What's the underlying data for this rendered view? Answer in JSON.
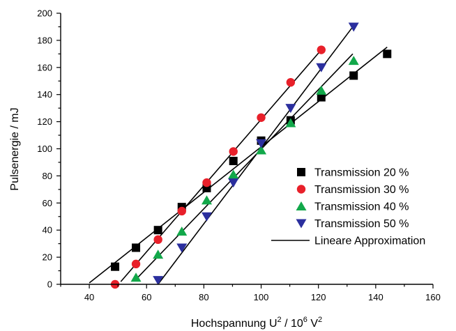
{
  "chart_data": {
    "type": "scatter",
    "title": "",
    "xlabel": {
      "main": "Hochspannung U",
      "sup1": "2",
      "mid": " / 10",
      "sup2": "6",
      "unit": " V",
      "sup3": "2"
    },
    "ylabel": "Pulsenergie / mJ",
    "xlim": [
      30,
      160
    ],
    "ylim": [
      0,
      200
    ],
    "xticks": [
      40,
      60,
      80,
      100,
      120,
      140,
      160
    ],
    "yticks": [
      0,
      20,
      40,
      60,
      80,
      100,
      120,
      140,
      160,
      180,
      200
    ],
    "legend_position": "center-right",
    "series": [
      {
        "name": "Transmission 20 %",
        "marker": "square",
        "color": "#000000",
        "points": [
          [
            49,
            13
          ],
          [
            56.3,
            27
          ],
          [
            64,
            40
          ],
          [
            72.3,
            57
          ],
          [
            81,
            71
          ],
          [
            90.3,
            91
          ],
          [
            100,
            106
          ],
          [
            110.3,
            121
          ],
          [
            121,
            138
          ],
          [
            132.3,
            154
          ],
          [
            144,
            170
          ]
        ],
        "fit": [
          [
            40,
            1
          ],
          [
            144,
            175
          ]
        ]
      },
      {
        "name": "Transmission 30 %",
        "marker": "circle",
        "color": "#e8202a",
        "points": [
          [
            49,
            0
          ],
          [
            56.3,
            15
          ],
          [
            64,
            33
          ],
          [
            72.3,
            54
          ],
          [
            81,
            75
          ],
          [
            90.3,
            98
          ],
          [
            100,
            123
          ],
          [
            110.3,
            149
          ],
          [
            121,
            173
          ]
        ],
        "fit": [
          [
            51,
            2
          ],
          [
            121,
            173
          ]
        ]
      },
      {
        "name": "Transmission 40 %",
        "marker": "triangle-up",
        "color": "#12a84a",
        "points": [
          [
            56.3,
            5
          ],
          [
            64,
            22
          ],
          [
            72.3,
            39
          ],
          [
            81,
            62
          ],
          [
            90.3,
            81
          ],
          [
            100,
            99
          ],
          [
            110.3,
            119
          ],
          [
            121,
            143
          ],
          [
            132.3,
            165
          ]
        ],
        "fit": [
          [
            56,
            3
          ],
          [
            132,
            170
          ]
        ]
      },
      {
        "name": "Transmission 50 %",
        "marker": "triangle-down",
        "color": "#2b2f9e",
        "points": [
          [
            64,
            3
          ],
          [
            72.3,
            27
          ],
          [
            81,
            50
          ],
          [
            90.3,
            75
          ],
          [
            100,
            104
          ],
          [
            110.3,
            130
          ],
          [
            121,
            160
          ],
          [
            132.3,
            190
          ]
        ],
        "fit": [
          [
            64,
            0
          ],
          [
            132,
            190
          ]
        ]
      }
    ],
    "fit_legend": "Lineare Approximation"
  }
}
